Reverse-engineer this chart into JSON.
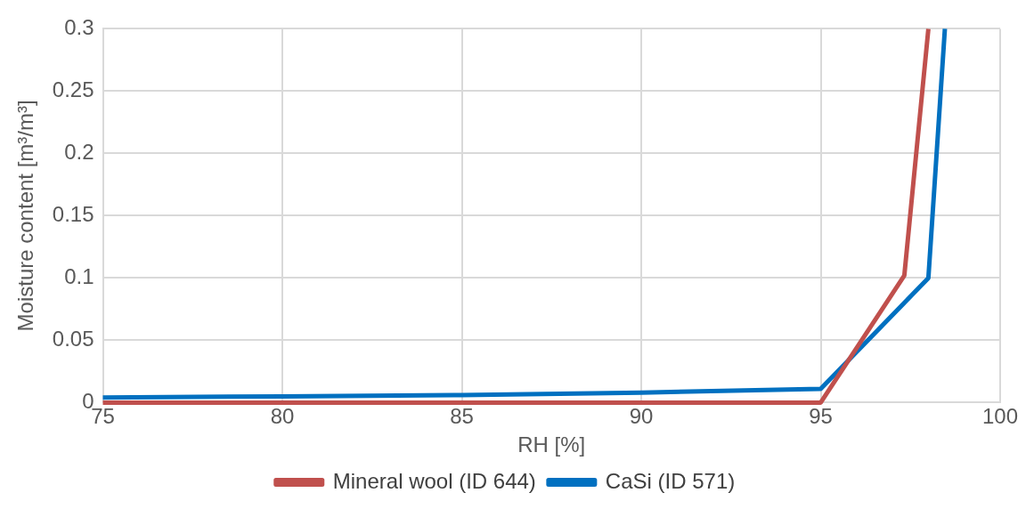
{
  "chart_data": {
    "type": "line",
    "xlabel": "RH [%]",
    "ylabel": "Moisture content [m³/m³]",
    "xlim": [
      75,
      100
    ],
    "xticks": [
      75,
      80,
      85,
      90,
      95,
      100
    ],
    "ylim": [
      0,
      0.3
    ],
    "yticks": [
      0,
      0.05,
      0.1,
      0.15,
      0.2,
      0.25,
      0.3
    ],
    "grid": true,
    "legend": "bottom",
    "marker": "none",
    "line_style": "solid",
    "series": [
      {
        "name": "Mineral wool (ID 644)",
        "color": "#c0504d",
        "x": [
          75,
          95,
          97.33,
          98.0
        ],
        "values": [
          0,
          0,
          0.102,
          0.3
        ]
      },
      {
        "name": "CaSi (ID 571)",
        "color": "#0070c0",
        "x": [
          75,
          80,
          85,
          90,
          95,
          98.0,
          98.46
        ],
        "values": [
          0.004,
          0.005,
          0.006,
          0.008,
          0.011,
          0.1,
          0.3
        ]
      }
    ]
  }
}
